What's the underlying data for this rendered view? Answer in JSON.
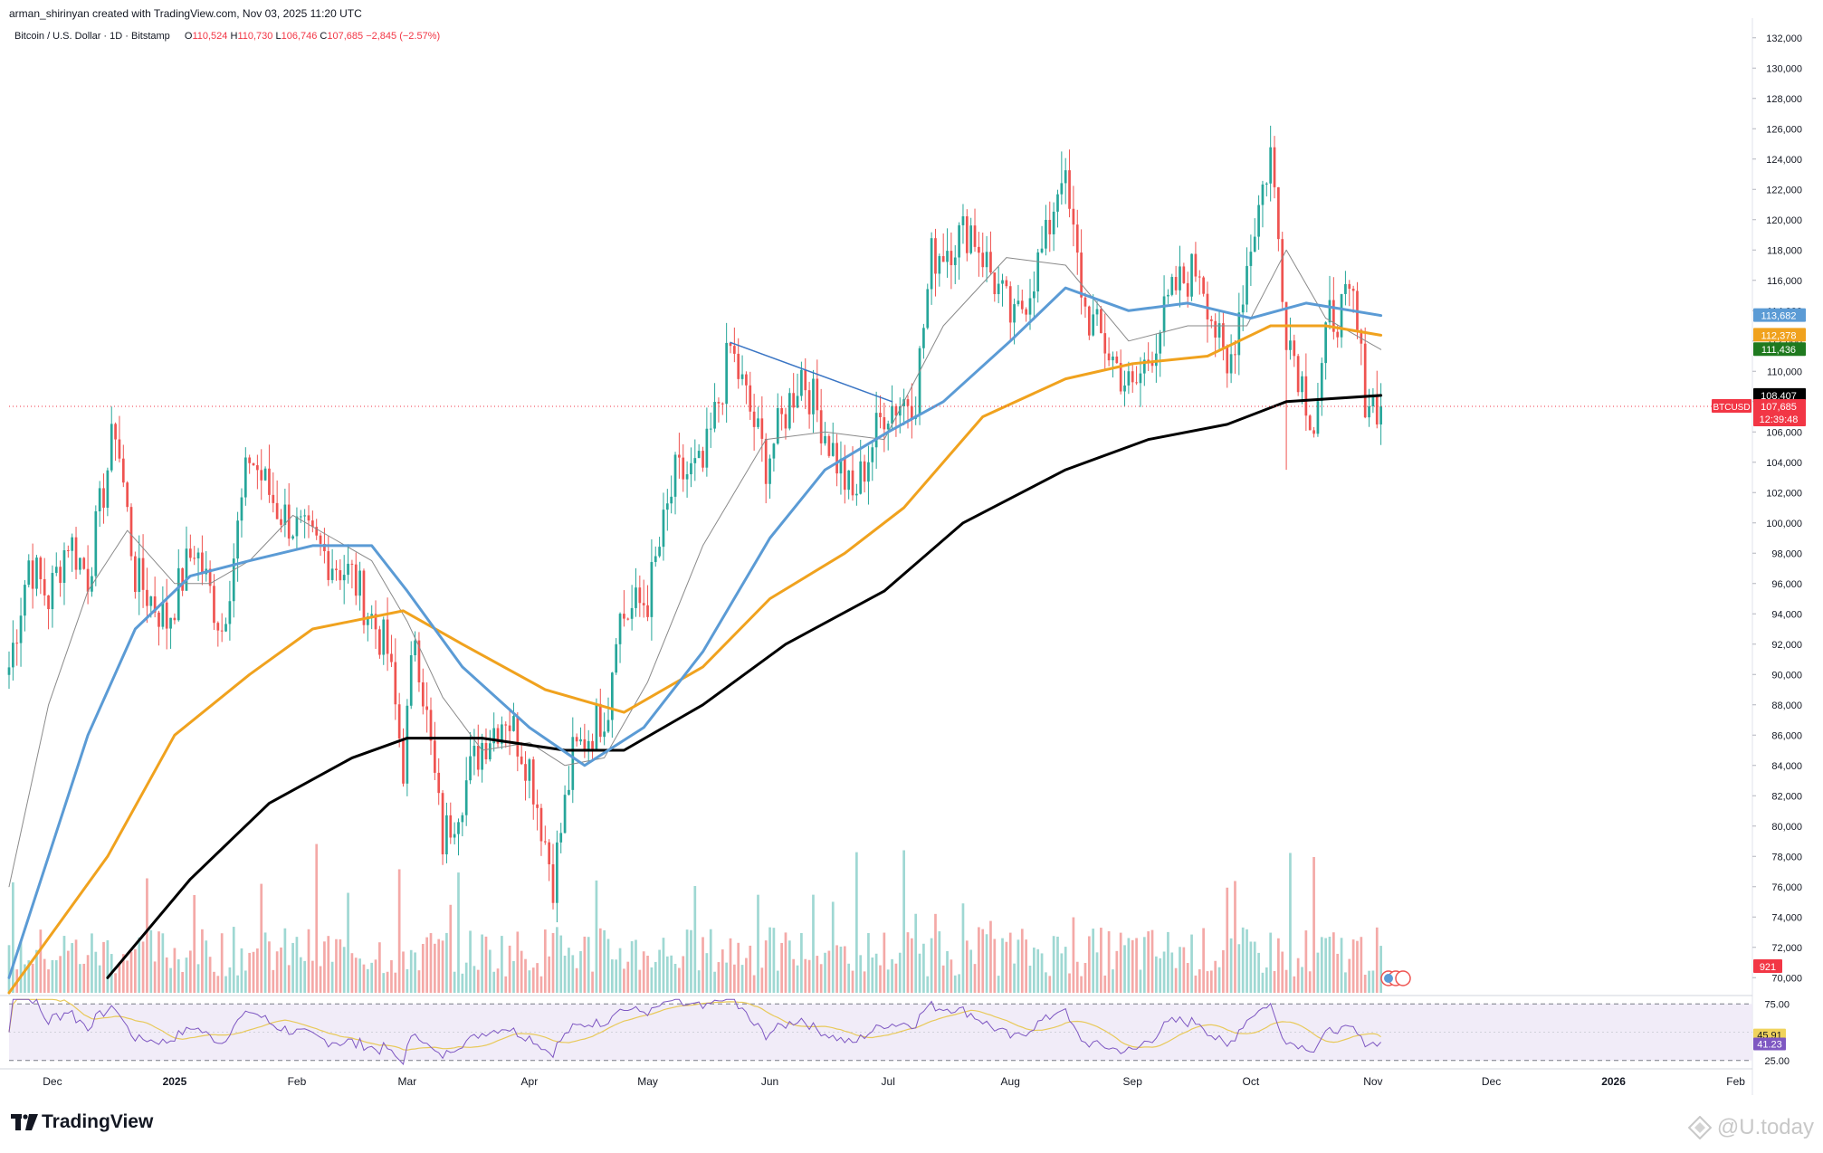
{
  "header": {
    "credit": "arman_shirinyan created with TradingView.com, Nov 03, 2025 11:20 UTC",
    "symbol_desc": "Bitcoin / U.S. Dollar · 1D · Bitstamp",
    "open_label": "O",
    "open": "110,524",
    "high_label": "H",
    "high": "110,730",
    "low_label": "L",
    "low": "106,746",
    "close_label": "C",
    "close": "107,685",
    "change": "−2,845 (−2.57%)"
  },
  "footer": {
    "logo_text": "TradingView",
    "watermark": "@U.today",
    "logo_icon": "tradingview-logo-icon",
    "watermark_icon": "u-today-icon"
  },
  "colors": {
    "up": "#26a69a",
    "down": "#ef5350",
    "vol_up": "#9fd8d3",
    "vol_down": "#f4a9a7",
    "sma20": "#8a8a8a",
    "sma50": "#5b9bd5",
    "sma100": "#f0a21e",
    "sma200": "#000000",
    "trendline": "#3a75c4",
    "rsi": "#7e57c2",
    "rsi_ma": "#e8c95a"
  },
  "chart_data": {
    "type": "line",
    "title": "Bitcoin / U.S. Dollar · 1D · Bitstamp",
    "y_axis_ticks": [
      "132,000",
      "130,000",
      "128,000",
      "126,000",
      "124,000",
      "122,000",
      "120,000",
      "118,000",
      "116,000",
      "114,000",
      "112,000",
      "110,000",
      "108,000",
      "106,000",
      "104,000",
      "102,000",
      "100,000",
      "98,000",
      "96,000",
      "94,000",
      "92,000",
      "90,000",
      "88,000",
      "86,000",
      "84,000",
      "82,000",
      "80,000",
      "78,000",
      "76,000",
      "74,000",
      "72,000",
      "70,000"
    ],
    "x_axis_ticks": [
      "Dec",
      "2025",
      "Feb",
      "Mar",
      "Apr",
      "May",
      "Jun",
      "Jul",
      "Aug",
      "Sep",
      "Oct",
      "Nov",
      "Dec",
      "2026",
      "Feb"
    ],
    "y_range": [
      69000,
      133000
    ],
    "x_range": [
      "2024-11-20",
      "2026-02-05"
    ],
    "price_path": [
      [
        "2024-11-20",
        90500
      ],
      [
        "2024-11-25",
        97500
      ],
      [
        "2024-11-30",
        95000
      ],
      [
        "2024-12-05",
        99000
      ],
      [
        "2024-12-10",
        96500
      ],
      [
        "2024-12-17",
        106500
      ],
      [
        "2024-12-22",
        96500
      ],
      [
        "2024-12-30",
        93500
      ],
      [
        "2025-01-06",
        98500
      ],
      [
        "2025-01-13",
        93000
      ],
      [
        "2025-01-20",
        104500
      ],
      [
        "2025-01-27",
        101000
      ],
      [
        "2025-02-03",
        99000
      ],
      [
        "2025-02-15",
        96500
      ],
      [
        "2025-02-24",
        91500
      ],
      [
        "2025-02-28",
        84000
      ],
      [
        "2025-03-03",
        93000
      ],
      [
        "2025-03-10",
        79000
      ],
      [
        "2025-03-20",
        85500
      ],
      [
        "2025-03-26",
        87500
      ],
      [
        "2025-04-01",
        84000
      ],
      [
        "2025-04-07",
        76500
      ],
      [
        "2025-04-12",
        84500
      ],
      [
        "2025-04-21",
        88000
      ],
      [
        "2025-04-23",
        93500
      ],
      [
        "2025-05-01",
        95000
      ],
      [
        "2025-05-08",
        103000
      ],
      [
        "2025-05-15",
        103500
      ],
      [
        "2025-05-22",
        111500
      ],
      [
        "2025-05-31",
        104000
      ],
      [
        "2025-06-09",
        110000
      ],
      [
        "2025-06-22",
        101500
      ],
      [
        "2025-06-30",
        107500
      ],
      [
        "2025-07-08",
        108500
      ],
      [
        "2025-07-12",
        117500
      ],
      [
        "2025-07-22",
        119500
      ],
      [
        "2025-08-02",
        113000
      ],
      [
        "2025-08-10",
        118500
      ],
      [
        "2025-08-14",
        123500
      ],
      [
        "2025-08-20",
        114000
      ],
      [
        "2025-09-01",
        108500
      ],
      [
        "2025-09-12",
        115500
      ],
      [
        "2025-09-18",
        117000
      ],
      [
        "2025-09-25",
        109500
      ],
      [
        "2025-10-01",
        118500
      ],
      [
        "2025-10-06",
        124500
      ],
      [
        "2025-10-10",
        113000
      ],
      [
        "2025-10-17",
        106500
      ],
      [
        "2025-10-21",
        113500
      ],
      [
        "2025-10-27",
        114500
      ],
      [
        "2025-10-30",
        108500
      ],
      [
        "2025-11-03",
        107685
      ]
    ],
    "extremes": [
      [
        "2025-04-07",
        74500
      ],
      [
        "2025-08-14",
        124500
      ],
      [
        "2025-10-06",
        126200
      ],
      [
        "2025-10-10",
        103500
      ]
    ],
    "trendline": [
      [
        "2025-05-22",
        111900
      ],
      [
        "2025-07-02",
        108000
      ]
    ],
    "sma20": [
      [
        "2024-11-20",
        76000
      ],
      [
        "2024-11-30",
        88000
      ],
      [
        "2024-12-10",
        95500
      ],
      [
        "2024-12-20",
        99500
      ],
      [
        "2025-01-01",
        96000
      ],
      [
        "2025-01-10",
        96000
      ],
      [
        "2025-01-20",
        97500
      ],
      [
        "2025-01-31",
        100500
      ],
      [
        "2025-02-10",
        99000
      ],
      [
        "2025-02-20",
        97500
      ],
      [
        "2025-03-01",
        93500
      ],
      [
        "2025-03-10",
        88500
      ],
      [
        "2025-03-20",
        85000
      ],
      [
        "2025-04-01",
        85500
      ],
      [
        "2025-04-10",
        84000
      ],
      [
        "2025-04-20",
        84500
      ],
      [
        "2025-05-01",
        89500
      ],
      [
        "2025-05-15",
        98500
      ],
      [
        "2025-05-31",
        105500
      ],
      [
        "2025-06-15",
        106000
      ],
      [
        "2025-06-30",
        105500
      ],
      [
        "2025-07-15",
        113000
      ],
      [
        "2025-07-31",
        117500
      ],
      [
        "2025-08-15",
        117000
      ],
      [
        "2025-08-31",
        112000
      ],
      [
        "2025-09-15",
        113000
      ],
      [
        "2025-09-30",
        113000
      ],
      [
        "2025-10-10",
        118000
      ],
      [
        "2025-10-20",
        113500
      ],
      [
        "2025-11-03",
        111436
      ]
    ],
    "sma50": [
      [
        "2024-11-20",
        70000
      ],
      [
        "2024-11-30",
        78000
      ],
      [
        "2024-12-10",
        86000
      ],
      [
        "2024-12-22",
        93000
      ],
      [
        "2025-01-05",
        96500
      ],
      [
        "2025-01-20",
        97500
      ],
      [
        "2025-02-05",
        98500
      ],
      [
        "2025-02-20",
        98500
      ],
      [
        "2025-03-01",
        95500
      ],
      [
        "2025-03-15",
        90500
      ],
      [
        "2025-04-01",
        86500
      ],
      [
        "2025-04-15",
        84000
      ],
      [
        "2025-04-30",
        86500
      ],
      [
        "2025-05-15",
        91500
      ],
      [
        "2025-06-01",
        99000
      ],
      [
        "2025-06-15",
        103500
      ],
      [
        "2025-07-01",
        106000
      ],
      [
        "2025-07-15",
        108000
      ],
      [
        "2025-08-01",
        112000
      ],
      [
        "2025-08-15",
        115500
      ],
      [
        "2025-08-31",
        114000
      ],
      [
        "2025-09-15",
        114500
      ],
      [
        "2025-10-01",
        113500
      ],
      [
        "2025-10-15",
        114500
      ],
      [
        "2025-11-03",
        113682
      ]
    ],
    "sma100": [
      [
        "2024-11-20",
        69000
      ],
      [
        "2024-12-15",
        78000
      ],
      [
        "2025-01-01",
        86000
      ],
      [
        "2025-01-20",
        90000
      ],
      [
        "2025-02-05",
        93000
      ],
      [
        "2025-02-28",
        94200
      ],
      [
        "2025-03-15",
        92000
      ],
      [
        "2025-04-05",
        89000
      ],
      [
        "2025-04-25",
        87500
      ],
      [
        "2025-05-15",
        90500
      ],
      [
        "2025-06-01",
        95000
      ],
      [
        "2025-06-20",
        98000
      ],
      [
        "2025-07-05",
        101000
      ],
      [
        "2025-07-25",
        107000
      ],
      [
        "2025-08-15",
        109500
      ],
      [
        "2025-09-01",
        110500
      ],
      [
        "2025-09-20",
        111000
      ],
      [
        "2025-10-06",
        113000
      ],
      [
        "2025-10-20",
        113000
      ],
      [
        "2025-11-03",
        112378
      ]
    ],
    "sma200": [
      [
        "2024-12-15",
        70000
      ],
      [
        "2025-01-05",
        76500
      ],
      [
        "2025-01-25",
        81500
      ],
      [
        "2025-02-15",
        84500
      ],
      [
        "2025-03-01",
        85800
      ],
      [
        "2025-03-20",
        85800
      ],
      [
        "2025-04-10",
        85000
      ],
      [
        "2025-04-25",
        85000
      ],
      [
        "2025-05-15",
        88000
      ],
      [
        "2025-06-05",
        92000
      ],
      [
        "2025-06-30",
        95500
      ],
      [
        "2025-07-20",
        100000
      ],
      [
        "2025-08-15",
        103500
      ],
      [
        "2025-09-05",
        105500
      ],
      [
        "2025-09-25",
        106500
      ],
      [
        "2025-10-10",
        108000
      ],
      [
        "2025-11-03",
        108407
      ]
    ],
    "volume": {
      "bar_count": 340,
      "typical": "low with spikes",
      "last_value": "921"
    },
    "rsi": {
      "levels": [
        "75.00",
        "25.00"
      ],
      "upper": 75,
      "lower": 25,
      "value": "41.23",
      "ma_value": "45.91"
    },
    "price_labels": [
      {
        "text": "113,682",
        "value": 113682,
        "color": "#5b9bd5"
      },
      {
        "text": "112,378",
        "value": 112378,
        "color": "#f0a21e"
      },
      {
        "text": "111,436",
        "value": 111436,
        "color": "#1f7a1f"
      },
      {
        "text": "108,407",
        "value": 108407,
        "color": "#000000"
      },
      {
        "text": "107,685",
        "value": 107685,
        "color": "#f23645"
      }
    ],
    "countdown": "12:39:48",
    "symbol_tag": "BTCUSD",
    "current_price": 107685
  }
}
